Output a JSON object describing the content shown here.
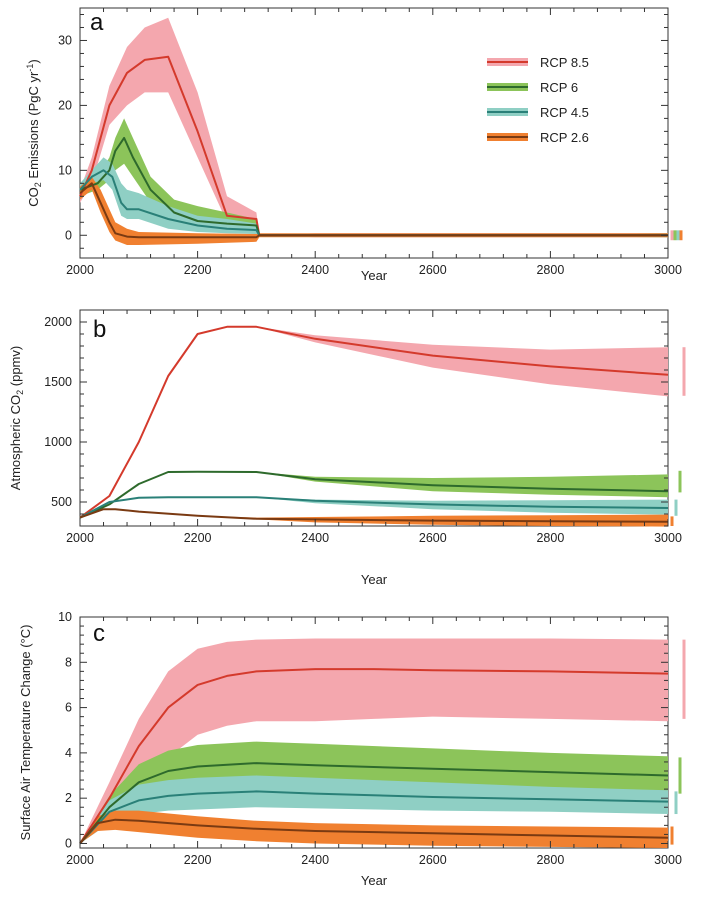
{
  "colors": {
    "rcp85": {
      "line": "#d43a2c",
      "band": "#f4a7ae"
    },
    "rcp6": {
      "line": "#2e6a2c",
      "band": "#8cc45a"
    },
    "rcp45": {
      "line": "#2a8078",
      "band": "#8fcfc4"
    },
    "rcp26": {
      "line": "#7a3a12",
      "band": "#f08030"
    }
  },
  "chart_data": [
    {
      "type": "line",
      "panel": "a",
      "xlabel": "Year",
      "ylabel_parts": [
        "CO",
        "2",
        " Emissions (PgC yr",
        "-1",
        ")"
      ],
      "xlim": [
        2000,
        3000
      ],
      "ylim": [
        -3.5,
        35
      ],
      "xticks": [
        2000,
        2200,
        2400,
        2600,
        2800,
        3000
      ],
      "yticks": [
        0,
        10,
        20,
        30
      ],
      "legend": {
        "position": "top-right",
        "entries": [
          "RCP 8.5",
          "RCP 6",
          "RCP 4.5",
          "RCP 2.6"
        ]
      },
      "series": [
        {
          "name": "RCP 8.5",
          "key": "rcp85",
          "x": [
            2000,
            2020,
            2050,
            2080,
            2110,
            2150,
            2200,
            2250,
            2300,
            2305,
            2400,
            3000
          ],
          "y": [
            6,
            10,
            20,
            25,
            27,
            27.5,
            16,
            3,
            2.5,
            0,
            0,
            0
          ],
          "lower": [
            5,
            8,
            17,
            20,
            22,
            22,
            12,
            2,
            1.5,
            0,
            -0.3,
            -0.3
          ],
          "upper": [
            7,
            12,
            23,
            29,
            32,
            33.5,
            22,
            6,
            3.5,
            0,
            0.3,
            0.3
          ],
          "range_bar": [
            -0.3,
            0.3
          ]
        },
        {
          "name": "RCP 6",
          "key": "rcp6",
          "x": [
            2000,
            2030,
            2050,
            2060,
            2075,
            2090,
            2120,
            2160,
            2200,
            2250,
            2300,
            2305,
            3000
          ],
          "y": [
            7,
            8,
            10,
            13,
            15,
            12,
            7,
            3.5,
            2.2,
            1.8,
            1.5,
            0,
            0
          ],
          "lower": [
            6,
            7,
            8.5,
            10,
            11,
            9,
            5,
            2.5,
            1.5,
            1.2,
            1,
            0,
            -0.3
          ],
          "upper": [
            8,
            9,
            12,
            15,
            18,
            15,
            9,
            5.5,
            4.5,
            3.5,
            2.5,
            0,
            0.3
          ],
          "range_bar": [
            -0.3,
            0.3
          ]
        },
        {
          "name": "RCP 4.5",
          "key": "rcp45",
          "x": [
            2000,
            2020,
            2040,
            2055,
            2070,
            2080,
            2100,
            2150,
            2200,
            2250,
            2300,
            2305,
            3000
          ],
          "y": [
            7,
            9,
            10,
            9,
            5,
            4,
            4,
            2.5,
            1.5,
            1,
            0.8,
            0,
            0
          ],
          "lower": [
            6,
            8,
            8.5,
            7,
            3,
            2.5,
            2.5,
            1,
            0.5,
            0.3,
            0.2,
            0,
            -0.3
          ],
          "upper": [
            8,
            10,
            12,
            11,
            8,
            7,
            6.5,
            4.5,
            3,
            2.5,
            1.8,
            0,
            0.3
          ],
          "range_bar": [
            -0.3,
            0.3
          ]
        },
        {
          "name": "RCP 2.6",
          "key": "rcp26",
          "x": [
            2000,
            2020,
            2035,
            2050,
            2060,
            2080,
            2100,
            2200,
            2300,
            2305,
            3000
          ],
          "y": [
            6.5,
            8,
            5,
            2,
            0.3,
            -0.2,
            -0.3,
            -0.3,
            -0.3,
            0,
            0
          ],
          "lower": [
            5.5,
            7,
            3.5,
            0.5,
            -0.8,
            -1.5,
            -1.5,
            -1.3,
            -1,
            -0.3,
            -0.3
          ],
          "upper": [
            7.5,
            9,
            7,
            4,
            2,
            1,
            0.5,
            0.3,
            0.2,
            0.3,
            0.3
          ],
          "range_bar": [
            -0.3,
            0.3
          ]
        }
      ]
    },
    {
      "type": "line",
      "panel": "b",
      "xlabel": "Year",
      "ylabel_parts": [
        "Atmospheric CO",
        "2",
        " (ppmv)"
      ],
      "xlim": [
        2000,
        3000
      ],
      "ylim": [
        300,
        2100
      ],
      "xticks": [
        2000,
        2200,
        2400,
        2600,
        2800,
        3000
      ],
      "yticks": [
        500,
        1000,
        1500,
        2000
      ],
      "series": [
        {
          "name": "RCP 8.5",
          "key": "rcp85",
          "x": [
            2000,
            2050,
            2100,
            2150,
            2200,
            2250,
            2300,
            2400,
            2600,
            2800,
            3000
          ],
          "y": [
            370,
            550,
            1000,
            1550,
            1900,
            1960,
            1960,
            1860,
            1720,
            1630,
            1560
          ],
          "lower": [
            370,
            550,
            1000,
            1550,
            1900,
            1960,
            1960,
            1830,
            1620,
            1480,
            1380
          ],
          "upper": [
            370,
            550,
            1000,
            1550,
            1900,
            1960,
            1960,
            1890,
            1810,
            1770,
            1790
          ],
          "range_bar": [
            1385,
            1790
          ]
        },
        {
          "name": "RCP 6",
          "key": "rcp6",
          "x": [
            2000,
            2050,
            2100,
            2150,
            2200,
            2300,
            2400,
            2600,
            2800,
            3000
          ],
          "y": [
            370,
            480,
            650,
            750,
            752,
            750,
            690,
            640,
            610,
            590
          ],
          "lower": [
            370,
            480,
            650,
            750,
            752,
            750,
            670,
            590,
            560,
            540
          ],
          "upper": [
            370,
            480,
            650,
            750,
            752,
            750,
            710,
            700,
            710,
            730
          ],
          "range_bar": [
            580,
            760
          ]
        },
        {
          "name": "RCP 4.5",
          "key": "rcp45",
          "x": [
            2000,
            2050,
            2100,
            2150,
            2300,
            2400,
            2600,
            2800,
            3000
          ],
          "y": [
            370,
            500,
            535,
            540,
            540,
            510,
            480,
            460,
            450
          ],
          "lower": [
            370,
            500,
            535,
            540,
            540,
            490,
            440,
            410,
            395
          ],
          "upper": [
            370,
            500,
            535,
            540,
            540,
            520,
            510,
            515,
            520
          ],
          "range_bar": [
            385,
            520
          ]
        },
        {
          "name": "RCP 2.6",
          "key": "rcp26",
          "x": [
            2000,
            2040,
            2060,
            2100,
            2200,
            2300,
            2400,
            2600,
            2800,
            3000
          ],
          "y": [
            370,
            440,
            440,
            420,
            385,
            360,
            355,
            345,
            340,
            335
          ],
          "lower": [
            370,
            440,
            440,
            420,
            385,
            355,
            330,
            310,
            300,
            295
          ],
          "upper": [
            370,
            440,
            440,
            420,
            385,
            370,
            375,
            385,
            390,
            395
          ],
          "range_bar": [
            300,
            380
          ]
        }
      ]
    },
    {
      "type": "line",
      "panel": "c",
      "xlabel": "Year",
      "ylabel_parts": [
        "Surface Air Temperature Change (°C)"
      ],
      "xlim": [
        2000,
        3000
      ],
      "ylim": [
        -0.2,
        10
      ],
      "xticks": [
        2000,
        2200,
        2400,
        2600,
        2800,
        3000
      ],
      "yticks": [
        0,
        2,
        4,
        6,
        8,
        10
      ],
      "series": [
        {
          "name": "RCP 8.5",
          "key": "rcp85",
          "x": [
            2000,
            2050,
            2100,
            2150,
            2200,
            2250,
            2300,
            2400,
            2500,
            2600,
            2800,
            3000
          ],
          "y": [
            0,
            2,
            4.3,
            6,
            7,
            7.4,
            7.6,
            7.7,
            7.7,
            7.65,
            7.6,
            7.5
          ],
          "lower": [
            0,
            1.2,
            2.8,
            3.8,
            4.8,
            5.2,
            5.4,
            5.4,
            5.5,
            5.6,
            5.5,
            5.4
          ],
          "upper": [
            0,
            2.7,
            5.5,
            7.6,
            8.6,
            8.9,
            9,
            9.05,
            9.05,
            9.05,
            9.05,
            9
          ],
          "range_bar": [
            5.5,
            9
          ]
        },
        {
          "name": "RCP 6",
          "key": "rcp6",
          "x": [
            2000,
            2050,
            2100,
            2150,
            2200,
            2300,
            2400,
            2600,
            2800,
            3000
          ],
          "y": [
            0,
            1.6,
            2.7,
            3.2,
            3.4,
            3.55,
            3.45,
            3.3,
            3.15,
            3.0
          ],
          "lower": [
            0,
            1.0,
            1.7,
            2.0,
            2.2,
            2.3,
            2.25,
            2.2,
            2.15,
            2.1
          ],
          "upper": [
            0,
            2.1,
            3.5,
            4.1,
            4.35,
            4.5,
            4.4,
            4.2,
            4.0,
            3.85
          ],
          "range_bar": [
            2.2,
            3.8
          ]
        },
        {
          "name": "RCP 4.5",
          "key": "rcp45",
          "x": [
            2000,
            2050,
            2100,
            2150,
            2200,
            2300,
            2400,
            2600,
            2800,
            3000
          ],
          "y": [
            0,
            1.4,
            1.9,
            2.1,
            2.2,
            2.3,
            2.2,
            2.05,
            1.95,
            1.85
          ],
          "lower": [
            0,
            0.9,
            1.3,
            1.45,
            1.5,
            1.6,
            1.55,
            1.45,
            1.4,
            1.3
          ],
          "upper": [
            0,
            1.9,
            2.6,
            2.8,
            2.9,
            3.0,
            2.9,
            2.7,
            2.5,
            2.35
          ],
          "range_bar": [
            1.3,
            2.3
          ]
        },
        {
          "name": "RCP 2.6",
          "key": "rcp26",
          "x": [
            2000,
            2030,
            2060,
            2100,
            2200,
            2300,
            2400,
            2600,
            2800,
            3000
          ],
          "y": [
            0,
            0.9,
            1.05,
            1.0,
            0.8,
            0.65,
            0.55,
            0.45,
            0.35,
            0.25
          ],
          "lower": [
            0,
            0.55,
            0.6,
            0.5,
            0.25,
            0.1,
            0.0,
            -0.1,
            -0.15,
            -0.2
          ],
          "upper": [
            0,
            1.2,
            1.45,
            1.45,
            1.2,
            1.0,
            0.9,
            0.8,
            0.75,
            0.7
          ],
          "range_bar": [
            -0.05,
            0.75
          ]
        }
      ]
    }
  ]
}
